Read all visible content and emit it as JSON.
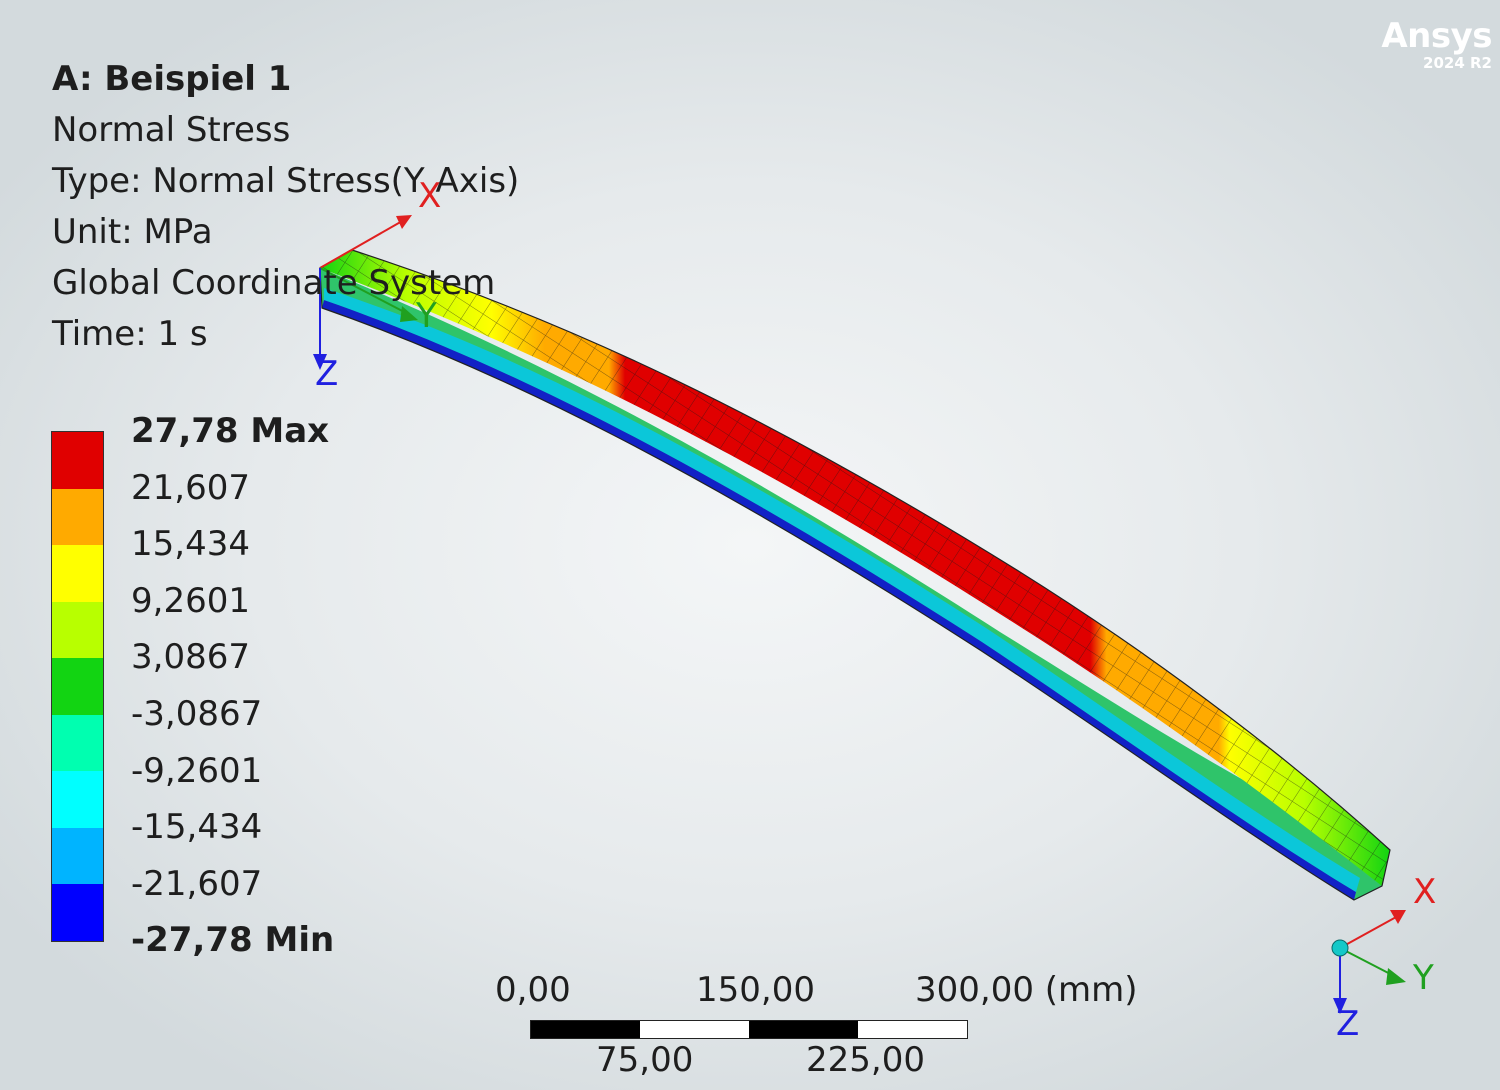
{
  "brand": {
    "name": "Ansys",
    "version": "2024 R2"
  },
  "info": {
    "title": "A: Beispiel 1",
    "result": "Normal Stress",
    "type": "Type: Normal Stress(Y Axis)",
    "unit": "Unit: MPa",
    "coord": "Global Coordinate System",
    "time": "Time: 1 s"
  },
  "legend": {
    "labels": [
      "27,78 Max",
      "21,607",
      "15,434",
      "9,2601",
      "3,0867",
      "-3,0867",
      "-9,2601",
      "-15,434",
      "-21,607",
      "-27,78 Min"
    ],
    "colors": [
      "#e00000",
      "#ffaa00",
      "#ffff00",
      "#b8ff00",
      "#12d412",
      "#00ffb0",
      "#00ffff",
      "#00b4ff",
      "#0000ff"
    ]
  },
  "triad_top": {
    "x": "X",
    "y": "Y",
    "z": "Z"
  },
  "triad_bottom": {
    "x": "X",
    "y": "Y",
    "z": "Z"
  },
  "scale": {
    "top_labels": [
      "0,00",
      "150,00",
      "300,00 (mm)"
    ],
    "bottom_labels": [
      "75,00",
      "225,00"
    ]
  }
}
